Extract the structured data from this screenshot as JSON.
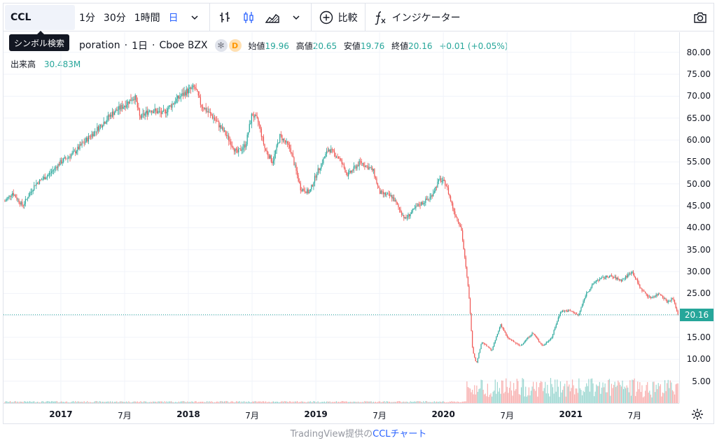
{
  "toolbar": {
    "symbol": "CCL",
    "intervals": [
      "1分",
      "30分",
      "1時間",
      "日"
    ],
    "active_interval": "日",
    "compare_label": "比較",
    "indicators_label": "インジケーター",
    "icons": [
      "chevron-down-icon",
      "bar-chart-icon",
      "candlestick-icon",
      "area-chart-icon",
      "chevron-down-icon",
      "plus-circle-icon",
      "fx-icon",
      "camera-icon"
    ]
  },
  "tooltip": "シンボル検索",
  "legend": {
    "title": "poration",
    "interval": "1日",
    "exchange": "Cboe BZX",
    "badge_d": "D",
    "open_label": "始値",
    "open": "19.96",
    "high_label": "高値",
    "high": "20.65",
    "low_label": "安値",
    "low": "19.76",
    "close_label": "終値",
    "close": "20.16",
    "change": "+0.01 (+0.05%)"
  },
  "volume": {
    "label": "出来高",
    "value": "30.483M"
  },
  "last_price": "20.16",
  "colors": {
    "up": "#26a69a",
    "down": "#ef5350",
    "accent": "#2962ff"
  },
  "footer": {
    "prefix": "TradingView提供の",
    "link": "CCLチャート"
  },
  "chart_data": {
    "type": "line",
    "price_ticks": [
      "80.00",
      "75.00",
      "70.00",
      "65.00",
      "60.00",
      "55.00",
      "50.00",
      "45.00",
      "40.00",
      "35.00",
      "30.00",
      "25.00",
      "20.00",
      "15.00",
      "10.00",
      "5.00"
    ],
    "time_ticks": [
      {
        "label": "2017",
        "year": true,
        "t": 2017.0
      },
      {
        "label": "7月",
        "year": false,
        "t": 2017.5
      },
      {
        "label": "2018",
        "year": true,
        "t": 2018.0
      },
      {
        "label": "7月",
        "year": false,
        "t": 2018.5
      },
      {
        "label": "2019",
        "year": true,
        "t": 2019.0
      },
      {
        "label": "7月",
        "year": false,
        "t": 2019.5
      },
      {
        "label": "2020",
        "year": true,
        "t": 2020.0
      },
      {
        "label": "7月",
        "year": false,
        "t": 2020.5
      },
      {
        "label": "2021",
        "year": true,
        "t": 2021.0
      },
      {
        "label": "7月",
        "year": false,
        "t": 2021.5
      }
    ],
    "x_range": [
      2016.55,
      2021.85
    ],
    "y_range": [
      0,
      83
    ],
    "series": [
      {
        "points": [
          [
            2016.56,
            46
          ],
          [
            2016.62,
            48
          ],
          [
            2016.7,
            45
          ],
          [
            2016.8,
            50
          ],
          [
            2016.9,
            52
          ],
          [
            2017.0,
            55
          ],
          [
            2017.1,
            57
          ],
          [
            2017.2,
            60
          ],
          [
            2017.3,
            63
          ],
          [
            2017.4,
            66
          ],
          [
            2017.5,
            68
          ],
          [
            2017.58,
            70
          ],
          [
            2017.62,
            65
          ],
          [
            2017.7,
            67
          ],
          [
            2017.8,
            66
          ],
          [
            2017.9,
            69
          ],
          [
            2017.98,
            71
          ],
          [
            2018.05,
            72
          ],
          [
            2018.1,
            68
          ],
          [
            2018.2,
            65
          ],
          [
            2018.3,
            61
          ],
          [
            2018.38,
            57
          ],
          [
            2018.45,
            59
          ],
          [
            2018.5,
            66
          ],
          [
            2018.55,
            64
          ],
          [
            2018.6,
            58
          ],
          [
            2018.66,
            55
          ],
          [
            2018.72,
            61
          ],
          [
            2018.8,
            58
          ],
          [
            2018.88,
            49
          ],
          [
            2018.95,
            48
          ],
          [
            2019.0,
            52
          ],
          [
            2019.1,
            58
          ],
          [
            2019.18,
            56
          ],
          [
            2019.25,
            52
          ],
          [
            2019.35,
            55
          ],
          [
            2019.45,
            53
          ],
          [
            2019.5,
            48
          ],
          [
            2019.6,
            47
          ],
          [
            2019.7,
            42
          ],
          [
            2019.8,
            45
          ],
          [
            2019.9,
            47
          ],
          [
            2019.97,
            51
          ],
          [
            2020.02,
            50
          ],
          [
            2020.08,
            44
          ],
          [
            2020.14,
            40
          ],
          [
            2020.2,
            25
          ],
          [
            2020.23,
            12
          ],
          [
            2020.26,
            9
          ],
          [
            2020.3,
            14
          ],
          [
            2020.38,
            12
          ],
          [
            2020.45,
            18
          ],
          [
            2020.5,
            15
          ],
          [
            2020.6,
            13
          ],
          [
            2020.7,
            16
          ],
          [
            2020.78,
            13
          ],
          [
            2020.85,
            15
          ],
          [
            2020.92,
            21
          ],
          [
            2021.0,
            21
          ],
          [
            2021.06,
            20
          ],
          [
            2021.12,
            25
          ],
          [
            2021.2,
            28
          ],
          [
            2021.3,
            29
          ],
          [
            2021.4,
            28
          ],
          [
            2021.48,
            30
          ],
          [
            2021.55,
            26
          ],
          [
            2021.62,
            24
          ],
          [
            2021.7,
            25
          ],
          [
            2021.76,
            23
          ],
          [
            2021.8,
            24
          ],
          [
            2021.84,
            20.16
          ]
        ]
      }
    ]
  }
}
